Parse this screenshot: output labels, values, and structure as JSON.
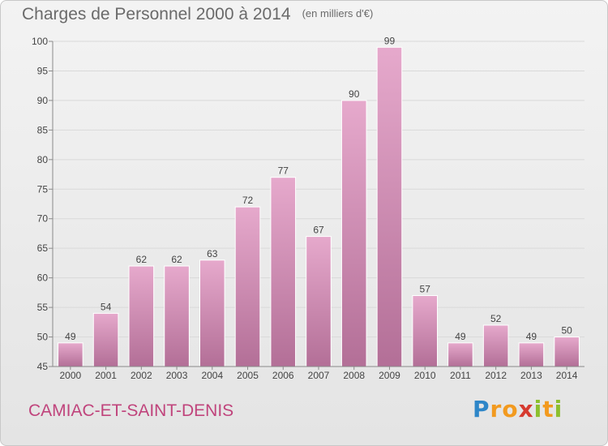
{
  "header": {
    "title": "Charges de Personnel 2000 à 2014",
    "subtitle": "(en milliers d'€)"
  },
  "footer": {
    "place": "CAMIAC-ET-SAINT-DENIS",
    "brand": "Proxiti",
    "brand_letters": [
      {
        "ch": "P",
        "color": "#2e86c8"
      },
      {
        "ch": "r",
        "color": "#f29a1f"
      },
      {
        "ch": "o",
        "color": "#f29a1f"
      },
      {
        "ch": "x",
        "color": "#d63a2f"
      },
      {
        "ch": "i",
        "color": "#8cbf2e"
      },
      {
        "ch": "t",
        "color": "#f29a1f"
      },
      {
        "ch": "i",
        "color": "#8cbf2e"
      }
    ]
  },
  "colors": {
    "bar_top": "#e6a9cc",
    "bar_bottom": "#b36f97",
    "bar_stroke": "#ffffff",
    "grid": "#d9d9d9",
    "axis": "#8a8a8a",
    "text": "#444444",
    "place": "#c0447c"
  },
  "chart_data": {
    "type": "bar",
    "title": "Charges de Personnel 2000 à 2014",
    "subtitle": "(en milliers d'€)",
    "xlabel": "",
    "ylabel": "",
    "categories": [
      "2000",
      "2001",
      "2002",
      "2003",
      "2004",
      "2005",
      "2006",
      "2007",
      "2008",
      "2009",
      "2010",
      "2011",
      "2012",
      "2013",
      "2014"
    ],
    "values": [
      49,
      54,
      62,
      62,
      63,
      72,
      77,
      67,
      90,
      99,
      57,
      49,
      52,
      49,
      50
    ],
    "ylim": [
      45,
      100
    ],
    "yticks": [
      45,
      50,
      55,
      60,
      65,
      70,
      75,
      80,
      85,
      90,
      95,
      100
    ],
    "grid": true,
    "legend": "none"
  }
}
